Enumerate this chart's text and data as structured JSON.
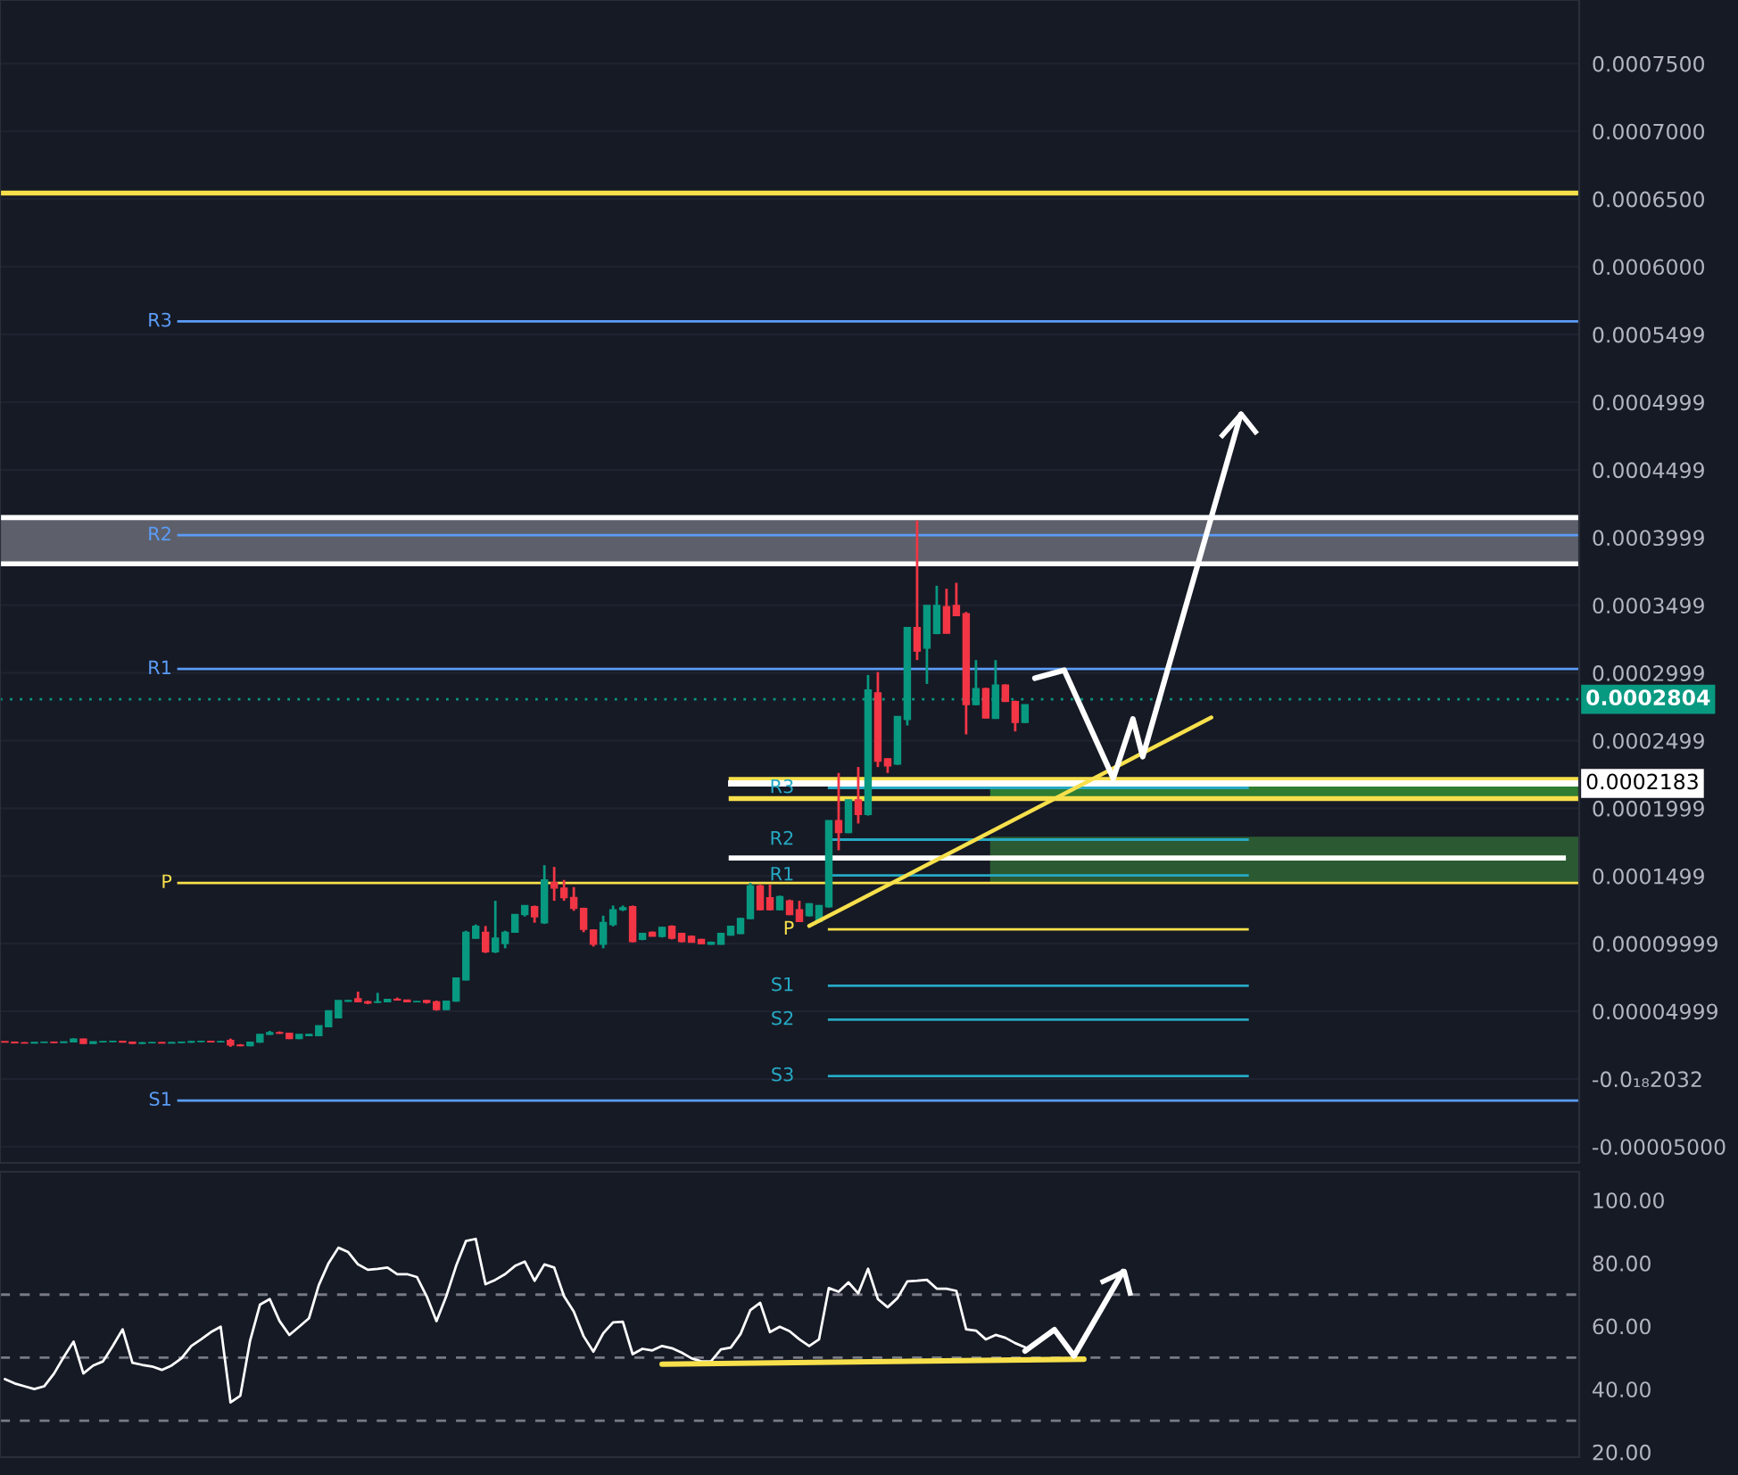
{
  "chart_data": [
    {
      "type": "candlestick",
      "categories": [
        null,
        null,
        null,
        null,
        null,
        null,
        null,
        null,
        null,
        null,
        null,
        null,
        null,
        null,
        null,
        null,
        null,
        null,
        null,
        null,
        null,
        null,
        null,
        null,
        null,
        null,
        null,
        null,
        null,
        null,
        null,
        null,
        null,
        null,
        null,
        null,
        null,
        null,
        null,
        null,
        null,
        null,
        null,
        null,
        null,
        null,
        null,
        null,
        null,
        null,
        null,
        null,
        null,
        null,
        null,
        null,
        null,
        null,
        null,
        null,
        null,
        null,
        null,
        null,
        null,
        null,
        null,
        null,
        null,
        null,
        null,
        null,
        null,
        null,
        null,
        null,
        null,
        null,
        null,
        null,
        null,
        null,
        null,
        null,
        null,
        null,
        null,
        null,
        null,
        null,
        null,
        null,
        null,
        null,
        null,
        null,
        null,
        null,
        null,
        null,
        null,
        null,
        null,
        null,
        null,
        null,
        null,
        null,
        null,
        null,
        null,
        null,
        null,
        null,
        null,
        null,
        null,
        null,
        null,
        null,
        null,
        null,
        null,
        null,
        null,
        null,
        null,
        null,
        null,
        null,
        null,
        null,
        null,
        null,
        null,
        null,
        null,
        null,
        null,
        null,
        null,
        null,
        null,
        null,
        null,
        null,
        null,
        null,
        null,
        null,
        null,
        null,
        null,
        null,
        null,
        null,
        null,
        null,
        null,
        null,
        null
      ],
      "ohlc": [
        [
          2.76e-05,
          2.76e-05,
          2.72e-05,
          2.72e-05
        ],
        [
          2.72e-05,
          2.76e-05,
          2.67e-05,
          2.67e-05
        ],
        [
          2.67e-05,
          2.72e-05,
          2.63e-05,
          2.65e-05
        ],
        [
          2.65e-05,
          2.72e-05,
          2.63e-05,
          2.7e-05
        ],
        [
          2.7e-05,
          2.76e-05,
          2.67e-05,
          2.72e-05
        ],
        [
          2.72e-05,
          2.76e-05,
          2.67e-05,
          2.69e-05
        ],
        [
          2.69e-05,
          2.76e-05,
          2.67e-05,
          2.74e-05
        ],
        [
          2.74e-05,
          3e-05,
          2.72e-05,
          2.94e-05
        ],
        [
          2.94e-05,
          2.98e-05,
          2.58e-05,
          2.63e-05
        ],
        [
          2.63e-05,
          2.76e-05,
          2.61e-05,
          2.74e-05
        ],
        [
          2.74e-05,
          2.78e-05,
          2.7e-05,
          2.76e-05
        ],
        [
          2.76e-05,
          2.81e-05,
          2.72e-05,
          2.78e-05
        ],
        [
          2.78e-05,
          2.81e-05,
          2.7e-05,
          2.72e-05
        ],
        [
          2.72e-05,
          2.76e-05,
          2.58e-05,
          2.63e-05
        ],
        [
          2.63e-05,
          2.72e-05,
          2.58e-05,
          2.67e-05
        ],
        [
          2.67e-05,
          2.72e-05,
          2.63e-05,
          2.69e-05
        ],
        [
          2.69e-05,
          2.72e-05,
          2.63e-05,
          2.65e-05
        ],
        [
          2.65e-05,
          2.72e-05,
          2.63e-05,
          2.69e-05
        ],
        [
          2.69e-05,
          2.76e-05,
          2.65e-05,
          2.72e-05
        ],
        [
          2.72e-05,
          2.81e-05,
          2.67e-05,
          2.76e-05
        ],
        [
          2.76e-05,
          2.81e-05,
          2.72e-05,
          2.78e-05
        ],
        [
          2.78e-05,
          2.81e-05,
          2.72e-05,
          2.74e-05
        ],
        [
          2.74e-05,
          2.81e-05,
          2.7e-05,
          2.76e-05
        ],
        [
          2.85e-05,
          2.98e-05,
          2.37e-05,
          2.5e-05
        ],
        [
          2.5e-05,
          2.58e-05,
          2.41e-05,
          2.46e-05
        ],
        [
          2.46e-05,
          2.72e-05,
          2.41e-05,
          2.72e-05
        ],
        [
          2.72e-05,
          3.29e-05,
          2.67e-05,
          3.29e-05
        ],
        [
          3.3e-05,
          3.55e-05,
          3.25e-05,
          3.42e-05
        ],
        [
          3.42e-05,
          3.51e-05,
          3.33e-05,
          3.38e-05
        ],
        [
          3.38e-05,
          3.38e-05,
          2.94e-05,
          2.98e-05
        ],
        [
          2.98e-05,
          3.29e-05,
          2.94e-05,
          3.29e-05
        ],
        [
          3.2e-05,
          3.33e-05,
          3.16e-05,
          3.29e-05
        ],
        [
          3.2e-05,
          3.94e-05,
          3.16e-05,
          3.94e-05
        ],
        [
          3.86e-05,
          5.04e-05,
          3.82e-05,
          5.04e-05
        ],
        [
          4.52e-05,
          5.79e-05,
          4.48e-05,
          5.79e-05
        ],
        [
          5.74e-05,
          5.83e-05,
          5.7e-05,
          5.79e-05
        ],
        [
          5.92e-05,
          6.45e-05,
          5.7e-05,
          5.7e-05
        ],
        [
          5.7e-05,
          5.79e-05,
          5.52e-05,
          5.61e-05
        ],
        [
          5.66e-05,
          6.36e-05,
          5.61e-05,
          5.7e-05
        ],
        [
          5.7e-05,
          5.92e-05,
          5.66e-05,
          5.88e-05
        ],
        [
          5.88e-05,
          6.01e-05,
          5.79e-05,
          5.83e-05
        ],
        [
          5.83e-05,
          5.83e-05,
          5.7e-05,
          5.7e-05
        ],
        [
          5.7e-05,
          5.75e-05,
          5.66e-05,
          5.72e-05
        ],
        [
          5.79e-05,
          5.83e-05,
          5.57e-05,
          5.66e-05
        ],
        [
          5.7e-05,
          5.79e-05,
          5.04e-05,
          5.13e-05
        ],
        [
          5.13e-05,
          5.79e-05,
          5.08e-05,
          5.75e-05
        ],
        [
          5.75e-05,
          7.46e-05,
          5.7e-05,
          7.46e-05
        ],
        [
          7.32e-05,
          0.0001095,
          7.28e-05,
          0.0001084
        ],
        [
          0.000104,
          0.0001141,
          0.0001035,
          0.0001127
        ],
        [
          0.0001084,
          0.000113,
          9.3e-05,
          9.4e-05
        ],
        [
          9.4e-05,
          0.0001316,
          9.3e-05,
          0.000104
        ],
        [
          0.0001,
          0.0001095,
          9.65e-05,
          0.0001084
        ],
        [
          0.0001084,
          0.0001215,
          0.000108,
          0.0001215
        ],
        [
          0.0001215,
          0.0001281,
          0.00012,
          0.0001281
        ],
        [
          0.0001272,
          0.0001281,
          0.0001154,
          0.0001198
        ],
        [
          0.0001154,
          0.0001579,
          0.0001145,
          0.000147
        ],
        [
          0.000145,
          0.0001566,
          0.0001316,
          0.000141
        ],
        [
          0.000141,
          0.000147,
          0.0001316,
          0.000134
        ],
        [
          0.000134,
          0.0001417,
          0.0001242,
          0.000126
        ],
        [
          0.0001259,
          0.0001265,
          0.0001084,
          0.0001105
        ],
        [
          0.00011,
          0.0001105,
          9.78e-05,
          9.95e-05
        ],
        [
          9.95e-05,
          0.0001206,
          9.65e-05,
          0.0001155
        ],
        [
          0.000114,
          0.0001281,
          0.0001127,
          0.000125
        ],
        [
          0.000125,
          0.0001281,
          0.000124,
          0.0001265
        ],
        [
          0.0001272,
          0.0001281,
          0.0001009,
          0.0001015
        ],
        [
          0.0001031,
          0.000108,
          0.0001025,
          0.0001075
        ],
        [
          0.0001084,
          0.000109,
          0.0001053,
          0.0001055
        ],
        [
          0.0001053,
          0.0001125,
          0.0001045,
          0.0001119
        ],
        [
          0.0001127,
          0.0001135,
          0.0001031,
          0.000104
        ],
        [
          0.0001075,
          0.000108,
          0.0001009,
          0.0001015
        ],
        [
          0.0001053,
          0.000106,
          0.0001009,
          0.000101
        ],
        [
          0.0001031,
          0.0001035,
          9.96e-05,
          9.98e-05
        ],
        [
          9.96e-05,
          0.0001015,
          9.92e-05,
          0.0001009
        ],
        [
          9.96e-05,
          0.000108,
          9.92e-05,
          0.0001075
        ],
        [
          0.0001062,
          0.000113,
          0.0001058,
          0.0001127
        ],
        [
          0.0001075,
          0.000119,
          0.000107,
          0.0001185
        ],
        [
          0.0001185,
          0.0001448,
          0.000118,
          0.0001426
        ],
        [
          0.0001426,
          0.0001435,
          0.0001245,
          0.000125
        ],
        [
          0.0001338,
          0.0001435,
          0.0001245,
          0.000125
        ],
        [
          0.000125,
          0.0001355,
          0.0001245,
          0.0001347
        ],
        [
          0.0001316,
          0.0001325,
          0.000121,
          0.0001215
        ],
        [
          0.000125,
          0.0001316,
          0.000116,
          0.0001163
        ],
        [
          0.0001206,
          0.0001298,
          0.00012,
          0.0001294
        ],
        [
          0.0001163,
          0.0001285,
          0.0001155,
          0.0001281
        ],
        [
          0.0001272,
          0.0001909,
          0.0001265,
          0.0001909
        ],
        [
          0.0001909,
          0.000226,
          0.0001689,
          0.0001821
        ],
        [
          0.0001821,
          0.0002062,
          0.0001815,
          0.0002062
        ],
        [
          0.0002062,
          0.0002304,
          0.0001887,
          0.0001953
        ],
        [
          0.0001953,
          0.0002984,
          0.0001945,
          0.0002874
        ],
        [
          0.0002852,
          0.0003006,
          0.0002304,
          0.0002348
        ],
        [
          0.0002365,
          0.000237,
          0.000226,
          0.0002313
        ],
        [
          0.0002326,
          0.000268,
          0.000232,
          0.0002677
        ],
        [
          0.0002655,
          0.0003335,
          0.0002611,
          0.0003335
        ],
        [
          0.0003335,
          0.0004125,
          0.0003094,
          0.000316
        ],
        [
          0.0003182,
          0.0003498,
          0.0002918,
          0.0003498
        ],
        [
          0.0003291,
          0.0003643,
          0.0003285,
          0.0003498
        ],
        [
          0.0003489,
          0.0003621,
          0.0003291,
          0.0003293
        ],
        [
          0.0003498,
          0.0003665,
          0.0003423,
          0.0003423
        ],
        [
          0.0003436,
          0.000345,
          0.0002545,
          0.0002765
        ],
        [
          0.0002765,
          0.0003094,
          0.000276,
          0.0002883
        ],
        [
          0.0002883,
          0.000289,
          0.0002664,
          0.0002666
        ],
        [
          0.0002664,
          0.0003094,
          0.000266,
          0.000291
        ],
        [
          0.000291,
          0.0002915,
          0.0002787,
          0.0002789
        ],
        [
          0.0002787,
          0.0002795,
          0.0002567,
          0.0002633
        ],
        [
          0.0002633,
          0.0002765,
          0.000263,
          0.0002765
        ],
        null,
        null,
        null,
        null,
        null,
        null,
        null,
        null,
        null,
        null,
        null,
        null,
        null,
        null,
        null,
        null,
        null,
        null,
        null,
        null,
        null,
        null,
        null,
        null,
        null,
        null,
        null,
        null,
        null,
        null,
        null,
        null,
        null,
        null,
        null,
        null,
        null,
        null,
        null,
        null,
        null,
        null,
        null,
        null,
        null,
        null,
        null,
        null,
        null,
        null,
        null,
        null,
        null,
        null,
        null,
        null
      ],
      "colors": [
        "#f23645",
        "#f23645",
        "#f23645",
        "#089981",
        "#089981",
        "#f23645",
        "#089981",
        "#089981",
        "#f23645",
        "#089981",
        "#089981",
        "#089981",
        "#f23645",
        "#f23645",
        "#089981",
        "#089981",
        "#f23645",
        "#089981",
        "#089981",
        "#089981",
        "#089981",
        "#f23645",
        "#089981",
        "#f23645",
        "#f23645",
        "#089981",
        "#089981",
        "#089981",
        "#f23645",
        "#f23645",
        "#089981",
        "#089981",
        "#089981",
        "#089981",
        "#089981",
        "#089981",
        "#f23645",
        "#f23645",
        "#089981",
        "#089981",
        "#f23645",
        "#f23645",
        "#089981",
        "#f23645",
        "#f23645",
        "#089981",
        "#089981",
        "#089981",
        "#089981",
        "#f23645",
        "#089981",
        "#089981",
        "#089981",
        "#089981",
        "#f23645",
        "#089981",
        "#f23645",
        "#f23645",
        "#f23645",
        "#f23645",
        "#f23645",
        "#089981",
        "#089981",
        "#089981",
        "#f23645",
        "#089981",
        "#f23645",
        "#089981",
        "#f23645",
        "#f23645",
        "#f23645",
        "#f23645",
        "#089981",
        "#089981",
        "#089981",
        "#089981",
        "#089981",
        "#f23645",
        "#f23645",
        "#089981",
        "#f23645",
        "#f23645",
        "#089981",
        "#089981",
        "#089981",
        "#f23645",
        "#089981",
        "#f23645",
        "#089981",
        "#f23645",
        "#f23645",
        "#089981",
        "#089981",
        "#f23645",
        "#089981",
        "#089981",
        "#f23645",
        "#f23645",
        "#f23645",
        "#089981",
        "#f23645",
        "#089981",
        "#f23645",
        "#f23645",
        "#089981",
        null,
        null,
        null,
        null,
        null,
        null,
        null,
        null,
        null,
        null,
        null,
        null,
        null,
        null,
        null,
        null,
        null,
        null,
        null,
        null,
        null,
        null,
        null,
        null,
        null,
        null,
        null,
        null,
        null,
        null,
        null,
        null,
        null,
        null,
        null,
        null,
        null,
        null,
        null,
        null,
        null,
        null,
        null,
        null,
        null,
        null,
        null,
        null,
        null,
        null,
        null,
        null,
        null,
        null,
        null,
        null
      ],
      "series": [
        {
          "type": "line",
          "color": "#f7e04b",
          "values": [
            null,
            null,
            null,
            null,
            null,
            null,
            null,
            null,
            null,
            null,
            null,
            null,
            null,
            null,
            null,
            null,
            null,
            null,
            null,
            null,
            null,
            null,
            null,
            null,
            null,
            null,
            null,
            null,
            null,
            null,
            null,
            null,
            null,
            null,
            null,
            null,
            null,
            null,
            null,
            null,
            null,
            null,
            null,
            null,
            null,
            null,
            null,
            null,
            null,
            null,
            null,
            null,
            null,
            null,
            null,
            null,
            null,
            null,
            null,
            null,
            null,
            null,
            null,
            null,
            null,
            null,
            null,
            null,
            null,
            null,
            null,
            null,
            null,
            null,
            null,
            null,
            null,
            null,
            null,
            null,
            null,
            null,
            0.000113,
            null,
            null,
            null,
            null,
            null,
            null,
            null,
            null,
            null,
            null,
            null,
            null,
            null,
            null,
            null,
            null,
            null,
            null,
            null,
            null,
            null,
            null,
            null,
            null,
            null,
            null,
            null,
            null,
            null,
            null,
            null,
            null,
            null,
            null,
            null,
            null,
            null,
            null,
            null,
            null,
            0.000267,
            null,
            null,
            null,
            null,
            null,
            null,
            null,
            null,
            null,
            null,
            null,
            null,
            null,
            null,
            null,
            null,
            null,
            null,
            null,
            null,
            null,
            null,
            null,
            null,
            null,
            null,
            null,
            null,
            null,
            null,
            null,
            null,
            null,
            null,
            null,
            null,
            null
          ]
        },
        {
          "type": "line",
          "color": "#ffffff",
          "values": [
            null,
            null,
            null,
            null,
            null,
            null,
            null,
            null,
            null,
            null,
            null,
            null,
            null,
            null,
            null,
            null,
            null,
            null,
            null,
            null,
            null,
            null,
            null,
            null,
            null,
            null,
            null,
            null,
            null,
            null,
            null,
            null,
            null,
            null,
            null,
            null,
            null,
            null,
            null,
            null,
            null,
            null,
            null,
            null,
            null,
            null,
            null,
            null,
            null,
            null,
            null,
            null,
            null,
            null,
            null,
            null,
            null,
            null,
            null,
            null,
            null,
            null,
            null,
            null,
            null,
            null,
            null,
            null,
            null,
            null,
            null,
            null,
            null,
            null,
            null,
            null,
            null,
            null,
            null,
            null,
            null,
            null,
            null,
            null,
            null,
            null,
            null,
            null,
            null,
            null,
            null,
            null,
            null,
            null,
            null,
            null,
            null,
            null,
            null,
            null,
            null,
            null,
            null,
            null,
            null,
            0.000296,
            null,
            null,
            0.000302,
            null,
            null,
            null,
            null,
            0.000222,
            null,
            0.000266,
            0.000238,
            null,
            null,
            null,
            null,
            null,
            null,
            null,
            null,
            null,
            0.000491,
            null,
            null,
            null,
            null,
            null,
            null,
            null,
            null,
            null,
            null,
            null,
            null,
            null,
            null,
            null,
            null,
            null,
            null,
            null,
            null,
            null,
            null,
            null,
            null,
            null,
            null,
            null,
            null,
            null,
            null,
            null,
            null,
            null,
            null
          ]
        }
      ],
      "ylim": [
        -6.2e-05,
        0.000797
      ],
      "yticks": [
        {
          "value": 0.00075,
          "label": "0.0007500"
        },
        {
          "value": 0.0007,
          "label": "0.0007000"
        },
        {
          "value": 0.00065,
          "label": "0.0006500"
        },
        {
          "value": 0.0006,
          "label": "0.0006000"
        },
        {
          "value": 0.0005499,
          "label": "0.0005499"
        },
        {
          "value": 0.0004999,
          "label": "0.0004999"
        },
        {
          "value": 0.0004499,
          "label": "0.0004499"
        },
        {
          "value": 0.0003999,
          "label": "0.0003999"
        },
        {
          "value": 0.0003499,
          "label": "0.0003499"
        },
        {
          "value": 0.0002999,
          "label": "0.0002999"
        },
        {
          "value": 0.0002499,
          "label": "0.0002499"
        },
        {
          "value": 0.0001999,
          "label": "0.0001999"
        },
        {
          "value": 0.0001499,
          "label": "0.0001499"
        },
        {
          "value": 9.999e-05,
          "label": "0.00009999"
        },
        {
          "value": 4.999e-05,
          "label": "0.00004999"
        },
        {
          "value": 0,
          "label": "-0.0₁₈2032"
        },
        {
          "value": -5e-05,
          "label": "-0.00005000"
        }
      ],
      "tick_labels": "y",
      "grid": "y",
      "ref_lines": [
        {
          "axis": "y",
          "value": 0.0006544,
          "color": "#f7e04b"
        },
        {
          "axis": "y",
          "value": 0.0005596,
          "label": "R3",
          "color": "#5b9cf6"
        },
        {
          "axis": "y",
          "value": 0.0004016,
          "label": "R2",
          "color": "#5b9cf6"
        },
        {
          "axis": "y",
          "value": 0.0003028,
          "label": "R1",
          "color": "#5b9cf6"
        },
        {
          "axis": "y",
          "value": 0.0001448,
          "label": "P",
          "color": "#f7e04b"
        },
        {
          "axis": "y",
          "value": -1.59e-05,
          "label": "S1",
          "color": "#5b9cf6"
        },
        {
          "axis": "y",
          "value": 0.000215,
          "label": "R3",
          "color": "#26a9c4"
        },
        {
          "axis": "y",
          "value": 0.0001768,
          "label": "R2",
          "color": "#26a9c4"
        },
        {
          "axis": "y",
          "value": 0.0001504,
          "label": "R1",
          "color": "#26a9c4"
        },
        {
          "axis": "y",
          "value": 0.0001105,
          "label": "P",
          "color": "#f7e04b"
        },
        {
          "axis": "y",
          "value": 6.88e-05,
          "label": "S1",
          "color": "#26a9c4"
        },
        {
          "axis": "y",
          "value": 4.38e-05,
          "label": "S2",
          "color": "#26a9c4"
        },
        {
          "axis": "y",
          "value": 2.2e-06,
          "label": "S3",
          "color": "#26a9c4"
        },
        {
          "axis": "y",
          "value": 0.0002212,
          "color": "#f7e04b"
        },
        {
          "axis": "y",
          "value": 0.0002071,
          "color": "#f7e04b"
        },
        {
          "axis": "y",
          "value": 0.0004147,
          "color": "#ffffff"
        },
        {
          "axis": "y",
          "value": 0.0003805,
          "color": "#ffffff"
        },
        {
          "axis": "y",
          "value": 0.0002183,
          "label": "0.0002183",
          "color": "#ffffff"
        },
        {
          "axis": "y",
          "value": 0.0001632,
          "color": "#ffffff"
        },
        {
          "axis": "y",
          "value": 0.0002804,
          "label": "0.0002804",
          "color": "#089981",
          "line_style": "dotted"
        }
      ],
      "bands": [
        {
          "axis": "y",
          "from": 0.0003805,
          "to": 0.0004147,
          "color": "#5d606b"
        },
        {
          "axis": "y",
          "from": 0.0001448,
          "to": 0.000179,
          "color": "#2b5a32"
        },
        {
          "axis": "y",
          "from": 0.0002071,
          "to": 0.0002212,
          "color": "#2e7d32"
        }
      ]
    },
    {
      "type": "line",
      "categories": [
        null,
        null,
        null,
        null,
        null,
        null,
        null,
        null,
        null,
        null,
        null,
        null,
        null,
        null,
        null,
        null,
        null,
        null,
        null,
        null,
        null,
        null,
        null,
        null,
        null,
        null,
        null,
        null,
        null,
        null,
        null,
        null,
        null,
        null,
        null,
        null,
        null,
        null,
        null,
        null,
        null,
        null,
        null,
        null,
        null,
        null,
        null,
        null,
        null,
        null,
        null,
        null,
        null,
        null,
        null,
        null,
        null,
        null,
        null,
        null,
        null,
        null,
        null,
        null,
        null,
        null,
        null,
        null,
        null,
        null,
        null,
        null,
        null,
        null,
        null,
        null,
        null,
        null,
        null,
        null,
        null,
        null,
        null,
        null,
        null,
        null,
        null,
        null,
        null,
        null,
        null,
        null,
        null,
        null,
        null,
        null,
        null,
        null,
        null,
        null,
        null,
        null,
        null,
        null,
        null,
        null,
        null,
        null,
        null,
        null,
        null,
        null,
        null,
        null,
        null,
        null,
        null,
        null,
        null,
        null,
        null,
        null,
        null,
        null,
        null,
        null,
        null,
        null,
        null,
        null,
        null,
        null,
        null,
        null,
        null,
        null,
        null,
        null,
        null,
        null,
        null,
        null,
        null,
        null,
        null,
        null,
        null,
        null,
        null,
        null,
        null,
        null,
        null,
        null,
        null,
        null,
        null,
        null,
        null,
        null,
        null
      ],
      "series": [
        {
          "color": "#ffffff",
          "values": [
            43.2,
            41.8,
            40.9,
            40.0,
            40.9,
            44.9,
            50.2,
            55.1,
            45.0,
            47.5,
            48.8,
            53.7,
            59.0,
            48.4,
            47.7,
            47.2,
            46.1,
            47.5,
            49.8,
            53.7,
            55.8,
            58.1,
            59.8,
            35.8,
            37.9,
            55.4,
            66.8,
            68.6,
            61.6,
            57.2,
            59.8,
            62.5,
            73.0,
            80.0,
            84.9,
            83.5,
            79.6,
            77.9,
            78.2,
            78.6,
            76.5,
            76.5,
            75.6,
            69.5,
            61.6,
            69.5,
            79.1,
            87.0,
            87.7,
            73.3,
            74.7,
            76.5,
            79.1,
            80.5,
            74.4,
            79.6,
            78.6,
            69.5,
            64.6,
            56.8,
            51.9,
            57.7,
            61.2,
            61.4,
            51.1,
            52.8,
            52.3,
            53.7,
            53.0,
            51.6,
            49.8,
            48.8,
            48.9,
            52.6,
            53.2,
            57.5,
            65.1,
            67.4,
            58.1,
            59.8,
            58.4,
            55.8,
            53.7,
            55.8,
            72.1,
            70.9,
            73.9,
            70.4,
            78.2,
            68.6,
            66.0,
            68.9,
            74.2,
            74.4,
            74.7,
            71.9,
            71.9,
            71.2,
            59.0,
            58.6,
            55.8,
            57.2,
            56.3,
            54.6,
            53.3,
            null,
            null,
            null,
            null,
            null,
            null,
            null,
            null,
            null,
            null,
            null,
            null,
            null,
            null,
            null,
            null,
            null,
            null,
            null,
            null,
            null,
            null,
            null,
            null,
            null,
            null,
            null,
            null,
            null,
            null,
            null,
            null,
            null,
            null,
            null,
            null,
            null,
            null,
            null,
            null,
            null,
            null,
            null,
            null,
            null,
            null,
            null,
            null,
            null,
            null,
            null,
            null,
            null,
            null,
            null,
            null
          ]
        },
        {
          "color": "#f7e04b",
          "values": [
            null,
            null,
            null,
            null,
            null,
            null,
            null,
            null,
            null,
            null,
            null,
            null,
            null,
            null,
            null,
            null,
            null,
            null,
            null,
            null,
            null,
            null,
            null,
            null,
            null,
            null,
            null,
            null,
            null,
            null,
            null,
            null,
            null,
            null,
            null,
            null,
            null,
            null,
            null,
            null,
            null,
            null,
            null,
            null,
            null,
            null,
            null,
            null,
            null,
            null,
            null,
            null,
            null,
            null,
            null,
            null,
            null,
            null,
            null,
            null,
            null,
            null,
            null,
            null,
            null,
            null,
            null,
            47.9,
            null,
            null,
            null,
            null,
            null,
            null,
            null,
            null,
            null,
            null,
            null,
            null,
            null,
            null,
            null,
            null,
            null,
            null,
            null,
            null,
            null,
            null,
            null,
            null,
            null,
            null,
            null,
            null,
            null,
            null,
            null,
            null,
            null,
            null,
            null,
            null,
            null,
            null,
            null,
            null,
            null,
            null,
            49.5,
            null,
            null,
            null,
            null,
            null,
            null,
            null,
            null,
            null,
            null,
            null,
            null,
            null,
            null,
            null,
            null,
            null,
            null,
            null,
            null,
            null,
            null,
            null,
            null,
            null,
            null,
            null,
            null,
            null,
            null,
            null,
            null,
            null,
            null,
            null,
            null,
            null,
            null,
            null,
            null,
            null,
            null,
            null,
            null,
            null,
            null,
            null,
            null,
            null,
            null
          ]
        },
        {
          "color": "#ffffff",
          "values": [
            null,
            null,
            null,
            null,
            null,
            null,
            null,
            null,
            null,
            null,
            null,
            null,
            null,
            null,
            null,
            null,
            null,
            null,
            null,
            null,
            null,
            null,
            null,
            null,
            null,
            null,
            null,
            null,
            null,
            null,
            null,
            null,
            null,
            null,
            null,
            null,
            null,
            null,
            null,
            null,
            null,
            null,
            null,
            null,
            null,
            null,
            null,
            null,
            null,
            null,
            null,
            null,
            null,
            null,
            null,
            null,
            null,
            null,
            null,
            null,
            null,
            null,
            null,
            null,
            null,
            null,
            null,
            null,
            null,
            null,
            null,
            null,
            null,
            null,
            null,
            null,
            null,
            null,
            null,
            null,
            null,
            null,
            null,
            null,
            null,
            null,
            null,
            null,
            null,
            null,
            null,
            null,
            null,
            null,
            null,
            null,
            null,
            null,
            null,
            null,
            null,
            null,
            null,
            null,
            52.1,
            null,
            null,
            58.9,
            null,
            50.5,
            null,
            null,
            null,
            null,
            77.4,
            null,
            null,
            null,
            null,
            null,
            null,
            null,
            null,
            null,
            null,
            null,
            null,
            null,
            null,
            null,
            null,
            null,
            null,
            null,
            null,
            null,
            null,
            null,
            null,
            null,
            null,
            null,
            null,
            null,
            null,
            null,
            null,
            null,
            null,
            null,
            null,
            null,
            null,
            null,
            null,
            null,
            null,
            null,
            null,
            null,
            null
          ]
        }
      ],
      "ylim": [
        18.4,
        109
      ],
      "yticks": [
        {
          "value": 20,
          "label": "20.00"
        },
        {
          "value": 40,
          "label": "40.00"
        },
        {
          "value": 60,
          "label": "60.00"
        },
        {
          "value": 80,
          "label": "80.00"
        },
        {
          "value": 100,
          "label": "100.00"
        }
      ],
      "tick_labels": "y",
      "ref_lines": [
        {
          "axis": "y",
          "value": 70,
          "color": "#787b86",
          "line_style": "dashed"
        },
        {
          "axis": "y",
          "value": 50,
          "color": "#787b86",
          "line_style": "dashed"
        },
        {
          "axis": "y",
          "value": 30,
          "color": "#787b86",
          "line_style": "dashed"
        }
      ]
    }
  ]
}
